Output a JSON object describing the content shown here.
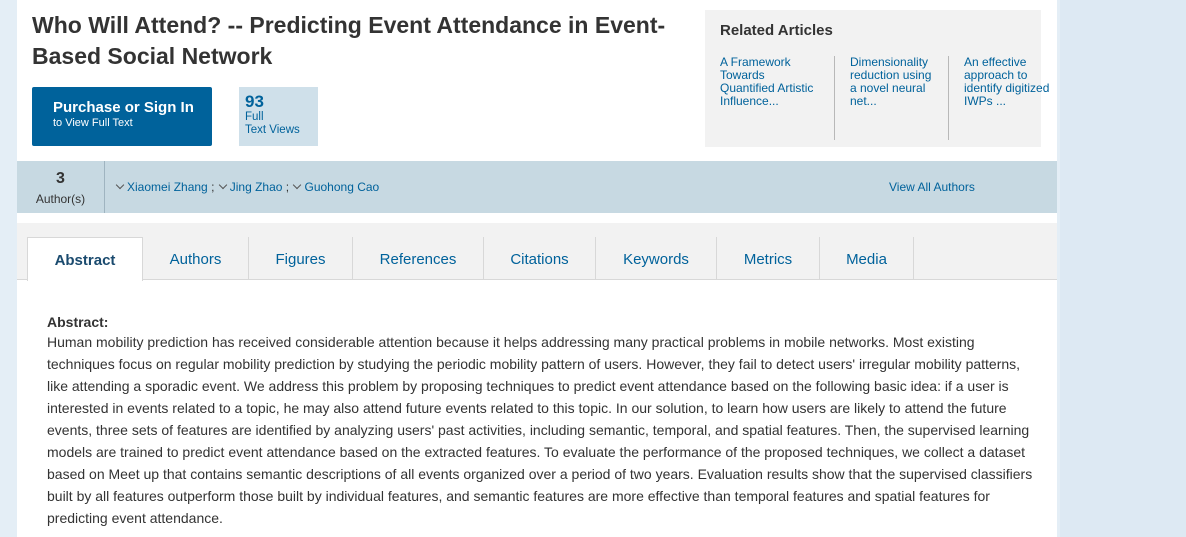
{
  "article": {
    "title": "Who Will Attend? -- Predicting Event Attendance in Event-Based Social Network"
  },
  "purchase": {
    "line1": "Purchase or Sign In",
    "line2": "to View Full Text"
  },
  "metrics_box": {
    "count": "93",
    "label_line1": "Full",
    "label_line2": "Text Views"
  },
  "related": {
    "heading": "Related Articles",
    "items": [
      {
        "text": "A Framework Towards Quantified Artistic Influence..."
      },
      {
        "text": "Dimensionality reduction using a novel neural net..."
      },
      {
        "text": "An effective approach to identify digitized IWPs ..."
      }
    ]
  },
  "authors": {
    "count": "3",
    "count_label": "Author(s)",
    "list": [
      {
        "name": "Xiaomei Zhang"
      },
      {
        "name": "Jing Zhao"
      },
      {
        "name": "Guohong Cao"
      }
    ],
    "separator": ";",
    "view_all": "View All Authors"
  },
  "tabs": [
    {
      "label": "Abstract",
      "active": true
    },
    {
      "label": "Authors"
    },
    {
      "label": "Figures"
    },
    {
      "label": "References"
    },
    {
      "label": "Citations"
    },
    {
      "label": "Keywords"
    },
    {
      "label": "Metrics"
    },
    {
      "label": "Media"
    }
  ],
  "abstract": {
    "heading": "Abstract:",
    "text": "Human mobility prediction has received considerable attention because it helps addressing many practical problems in mobile networks. Most existing techniques focus on regular mobility prediction by studying the periodic mobility pattern of users. However, they fail to detect users' irregular mobility patterns, like attending a sporadic event. We address this problem by proposing techniques to predict event attendance based on the following basic idea: if a user is interested in events related to a topic, he may also attend future events related to this topic. In our solution, to learn how users are likely to attend the future events, three sets of features are identified by analyzing users' past activities, including semantic, temporal, and spatial features. Then, the supervised learning models are trained to predict event attendance based on the extracted features. To evaluate the performance of the proposed techniques, we collect a dataset based on Meet up that contains semantic descriptions of all events organized over a period of two years. Evaluation results show that the supervised classifiers built by all features outperform those built by individual features, and semantic features are more effective than temporal features and spatial features for predicting event attendance."
  },
  "icons": {
    "author_toggle": "chevron-down-icon"
  },
  "colors": {
    "accent": "#00629b",
    "authors_bar": "#c7d9e2",
    "metrics_box": "#cfe0ea",
    "page_bg": "#e4eef6"
  }
}
